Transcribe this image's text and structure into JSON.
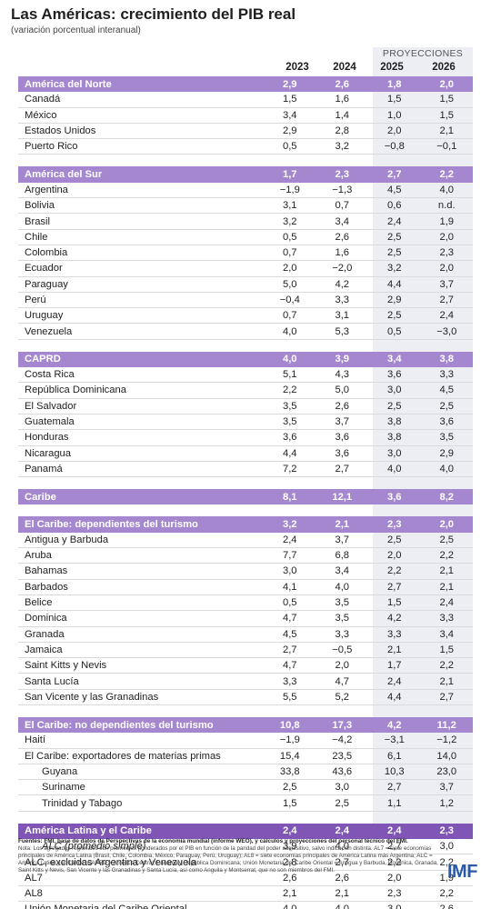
{
  "title": "Las Américas: crecimiento del PIB real",
  "subtitle": "(variación porcentual interanual)",
  "projections_label": "PROYECCIONES",
  "years": [
    "2023",
    "2024",
    "2025",
    "2026"
  ],
  "groups": [
    {
      "header": {
        "name": "América del Norte",
        "values": [
          "2,9",
          "2,6",
          "1,8",
          "2,0"
        ]
      },
      "rows": [
        {
          "name": "Canadá",
          "values": [
            "1,5",
            "1,6",
            "1,5",
            "1,5"
          ]
        },
        {
          "name": "México",
          "values": [
            "3,4",
            "1,4",
            "1,0",
            "1,5"
          ]
        },
        {
          "name": "Estados Unidos",
          "values": [
            "2,9",
            "2,8",
            "2,0",
            "2,1"
          ]
        },
        {
          "name": "Puerto Rico",
          "values": [
            "0,5",
            "3,2",
            "−0,8",
            "−0,1"
          ]
        }
      ]
    },
    {
      "header": {
        "name": "América del Sur",
        "values": [
          "1,7",
          "2,3",
          "2,7",
          "2,2"
        ]
      },
      "rows": [
        {
          "name": "Argentina",
          "values": [
            "−1,9",
            "−1,3",
            "4,5",
            "4,0"
          ]
        },
        {
          "name": "Bolivia",
          "values": [
            "3,1",
            "0,7",
            "0,6",
            "n.d."
          ]
        },
        {
          "name": "Brasil",
          "values": [
            "3,2",
            "3,4",
            "2,4",
            "1,9"
          ]
        },
        {
          "name": "Chile",
          "values": [
            "0,5",
            "2,6",
            "2,5",
            "2,0"
          ]
        },
        {
          "name": "Colombia",
          "values": [
            "0,7",
            "1,6",
            "2,5",
            "2,3"
          ]
        },
        {
          "name": "Ecuador",
          "values": [
            "2,0",
            "−2,0",
            "3,2",
            "2,0"
          ]
        },
        {
          "name": "Paraguay",
          "values": [
            "5,0",
            "4,2",
            "4,4",
            "3,7"
          ]
        },
        {
          "name": "Perú",
          "values": [
            "−0,4",
            "3,3",
            "2,9",
            "2,7"
          ]
        },
        {
          "name": "Uruguay",
          "values": [
            "0,7",
            "3,1",
            "2,5",
            "2,4"
          ]
        },
        {
          "name": "Venezuela",
          "values": [
            "4,0",
            "5,3",
            "0,5",
            "−3,0"
          ]
        }
      ]
    },
    {
      "header": {
        "name": "CAPRD",
        "values": [
          "4,0",
          "3,9",
          "3,4",
          "3,8"
        ]
      },
      "rows": [
        {
          "name": "Costa Rica",
          "values": [
            "5,1",
            "4,3",
            "3,6",
            "3,3"
          ]
        },
        {
          "name": "República Dominicana",
          "values": [
            "2,2",
            "5,0",
            "3,0",
            "4,5"
          ]
        },
        {
          "name": "El Salvador",
          "values": [
            "3,5",
            "2,6",
            "2,5",
            "2,5"
          ]
        },
        {
          "name": "Guatemala",
          "values": [
            "3,5",
            "3,7",
            "3,8",
            "3,6"
          ]
        },
        {
          "name": "Honduras",
          "values": [
            "3,6",
            "3,6",
            "3,8",
            "3,5"
          ]
        },
        {
          "name": "Nicaragua",
          "values": [
            "4,4",
            "3,6",
            "3,0",
            "2,9"
          ]
        },
        {
          "name": "Panamá",
          "values": [
            "7,2",
            "2,7",
            "4,0",
            "4,0"
          ]
        }
      ]
    },
    {
      "header": {
        "name": "Caribe",
        "values": [
          "8,1",
          "12,1",
          "3,6",
          "8,2"
        ]
      },
      "rows": []
    },
    {
      "header": {
        "name": "El Caribe: dependientes del turismo",
        "values": [
          "3,2",
          "2,1",
          "2,3",
          "2,0"
        ]
      },
      "rows": [
        {
          "name": "Antigua y Barbuda",
          "values": [
            "2,4",
            "3,7",
            "2,5",
            "2,5"
          ]
        },
        {
          "name": "Aruba",
          "values": [
            "7,7",
            "6,8",
            "2,0",
            "2,2"
          ]
        },
        {
          "name": "Bahamas",
          "values": [
            "3,0",
            "3,4",
            "2,2",
            "2,1"
          ]
        },
        {
          "name": "Barbados",
          "values": [
            "4,1",
            "4,0",
            "2,7",
            "2,1"
          ]
        },
        {
          "name": "Belice",
          "values": [
            "0,5",
            "3,5",
            "1,5",
            "2,4"
          ]
        },
        {
          "name": "Dominica",
          "values": [
            "4,7",
            "3,5",
            "4,2",
            "3,3"
          ]
        },
        {
          "name": "Granada",
          "values": [
            "4,5",
            "3,3",
            "3,3",
            "3,4"
          ]
        },
        {
          "name": "Jamaica",
          "values": [
            "2,7",
            "−0,5",
            "2,1",
            "1,5"
          ]
        },
        {
          "name": "Saint Kitts y Nevis",
          "values": [
            "4,7",
            "2,0",
            "1,7",
            "2,2"
          ]
        },
        {
          "name": "Santa Lucía",
          "values": [
            "3,3",
            "4,7",
            "2,4",
            "2,1"
          ]
        },
        {
          "name": "San Vicente y las Granadinas",
          "values": [
            "5,5",
            "5,2",
            "4,4",
            "2,7"
          ]
        }
      ]
    },
    {
      "header": {
        "name": "El Caribe: no dependientes del turismo",
        "values": [
          "10,8",
          "17,3",
          "4,2",
          "11,2"
        ]
      },
      "rows": [
        {
          "name": "Haití",
          "values": [
            "−1,9",
            "−4,2",
            "−3,1",
            "−1,2"
          ]
        },
        {
          "name": "El Caribe: exportadores de materias primas",
          "values": [
            "15,4",
            "23,5",
            "6,1",
            "14,0"
          ]
        },
        {
          "name": "Guyana",
          "values": [
            "33,8",
            "43,6",
            "10,3",
            "23,0"
          ],
          "indent": true
        },
        {
          "name": "Suriname",
          "values": [
            "2,5",
            "3,0",
            "2,7",
            "3,7"
          ],
          "indent": true
        },
        {
          "name": "Trinidad y Tabago",
          "values": [
            "1,5",
            "2,5",
            "1,1",
            "1,2"
          ],
          "indent": true
        }
      ]
    },
    {
      "latam": true,
      "header": {
        "name": "América Latina y el Caribe",
        "values": [
          "2,4",
          "2,4",
          "2,4",
          "2,3"
        ]
      },
      "rows": [
        {
          "name": "ALC (promedio simple)",
          "values": [
            "3,9",
            "4,0",
            "2,7",
            "3,0"
          ],
          "indent": true,
          "italic": true
        },
        {
          "name": "ALC, excluidas Argentina y Venezuela",
          "values": [
            "2,8",
            "2,7",
            "2,2",
            "2,2"
          ]
        },
        {
          "name": "AL7",
          "values": [
            "2,6",
            "2,6",
            "2,0",
            "1,9"
          ]
        },
        {
          "name": "AL8",
          "values": [
            "2,1",
            "2,1",
            "2,3",
            "2,2"
          ]
        },
        {
          "name": "Unión Monetaria del Caribe Oriental",
          "values": [
            "4,0",
            "4,0",
            "3,0",
            "2,6"
          ]
        }
      ]
    }
  ],
  "footnote_source": "Fuentes: FMI, base de datos de Perspectivas de la economía mundial (informe WEO), y cálculos y proyecciones del personal técnico del FMI.",
  "footnote_note": "Nota: Los agregados regionales son promedios ponderados por el PIB en función de la paridad del poder adquisitivo, salvo indicación distinta. AL7 = siete economías principales de América Latina (Brasil, Chile, Colombia, México, Paraguay, Perú, Uruguay); AL8 = siete economías principales de América Latina más Argentina; ALC = América Latina y el Caribe; CAPRD = América Central, Panamá y República Dominicana; Unión Monetaria del Caribe Oriental = Antigua y Barbuda, Dominica, Granada, Saint Kitts y Nevis, San Vicente y las Granadinas y Santa Lucía, así como Anguila y Montserrat, que no son miembros del FMI.",
  "logo": "IMF"
}
